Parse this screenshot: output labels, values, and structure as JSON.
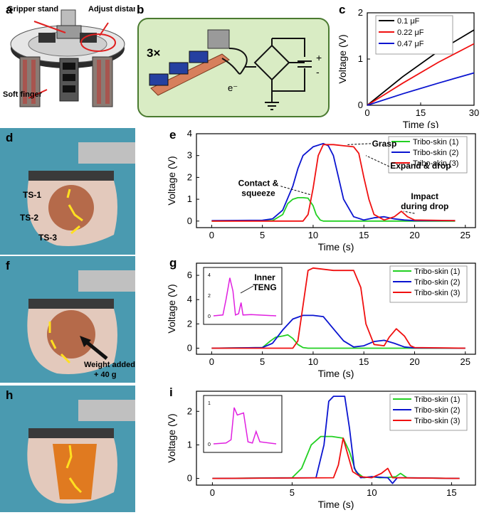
{
  "panel_labels": {
    "a": "a",
    "b": "b",
    "c": "c",
    "d": "d",
    "e": "e",
    "f": "f",
    "g": "g",
    "h": "h",
    "i": "i"
  },
  "panel_a": {
    "gripper_stand": "Gripper stand",
    "adjust_distance": "Adjust distance",
    "soft_finger": "Soft finger"
  },
  "panel_b": {
    "multiplier": "3×",
    "electron": "e⁻",
    "plus": "+",
    "minus": "-"
  },
  "panel_d": {
    "ts1": "TS-1",
    "ts2": "TS-2",
    "ts3": "TS-3"
  },
  "panel_f": {
    "weight": "Weight added",
    "weight2": "+ 40 g"
  },
  "colors": {
    "green": "#22d022",
    "blue": "#0a14d0",
    "red": "#f01010",
    "black": "#000000",
    "magenta": "#e020e0",
    "panel_b_bg": "#d9ecc4"
  },
  "chart_data": [
    {
      "id": "c",
      "type": "line",
      "xlabel": "Time (s)",
      "ylabel": "Voltage (V)",
      "xlim": [
        0,
        30
      ],
      "ylim": [
        0,
        2
      ],
      "xticks": [
        "0",
        "15",
        "30"
      ],
      "yticks": [
        "0",
        "1",
        "2"
      ],
      "series": [
        {
          "name": "0.1 μF",
          "color": "#000000",
          "x": [
            0,
            10,
            20,
            30
          ],
          "values": [
            0,
            0.62,
            1.17,
            1.63
          ]
        },
        {
          "name": "0.22 μF",
          "color": "#f01010",
          "x": [
            0,
            10,
            20,
            30
          ],
          "values": [
            0,
            0.48,
            0.93,
            1.33
          ]
        },
        {
          "name": "0.47 μF",
          "color": "#0a14d0",
          "x": [
            0,
            10,
            20,
            30
          ],
          "values": [
            0,
            0.25,
            0.48,
            0.7
          ]
        }
      ]
    },
    {
      "id": "e",
      "type": "line",
      "xlabel": "Time (s)",
      "ylabel": "Voltage (V)",
      "xlim": [
        -1.5,
        26
      ],
      "ylim": [
        -0.3,
        4
      ],
      "xticks": [
        "0",
        "5",
        "10",
        "15",
        "20",
        "25"
      ],
      "yticks": [
        "0",
        "1",
        "2",
        "3",
        "4"
      ],
      "annotations": [
        "Grasp",
        "Expand & drop",
        "Contact &",
        "squeeze",
        "Impact",
        "during drop"
      ],
      "series": [
        {
          "name": "Tribo-skin (1)",
          "color": "#22d022",
          "x": [
            0,
            6,
            7,
            7.5,
            8,
            8.5,
            9,
            9.5,
            10,
            10.3,
            10.7,
            11,
            12,
            24
          ],
          "values": [
            0,
            0.02,
            0.3,
            0.8,
            1.0,
            1.07,
            1.07,
            1.05,
            0.7,
            0.3,
            0.05,
            0,
            0,
            0
          ]
        },
        {
          "name": "Tribo-skin (2)",
          "color": "#0a14d0",
          "x": [
            0,
            5,
            6,
            7,
            8,
            8.5,
            9,
            10,
            11,
            11.5,
            12,
            12.5,
            13,
            14,
            15,
            16,
            17,
            18,
            19,
            20,
            24
          ],
          "values": [
            0.02,
            0.04,
            0.1,
            0.5,
            1.6,
            2.4,
            3.0,
            3.4,
            3.55,
            3.45,
            3.0,
            2.0,
            1.0,
            0.2,
            0.05,
            0.15,
            0.2,
            0.1,
            0.05,
            0.02,
            0.02
          ]
        },
        {
          "name": "Tribo-skin (3)",
          "color": "#f01010",
          "x": [
            0,
            9,
            9.5,
            10,
            10.5,
            11,
            12,
            13,
            14,
            14.5,
            15,
            15.5,
            16,
            17,
            18,
            18.7,
            19.3,
            20,
            24
          ],
          "values": [
            0,
            0,
            0.3,
            1.5,
            3.0,
            3.5,
            3.5,
            3.45,
            3.4,
            3.1,
            2.0,
            1.0,
            0.3,
            0.05,
            0.2,
            0.45,
            0.2,
            0.05,
            0.02
          ]
        }
      ]
    },
    {
      "id": "g",
      "type": "line",
      "xlabel": "Time (s)",
      "ylabel": "Voltage (V)",
      "xlim": [
        -1.5,
        26
      ],
      "ylim": [
        -0.5,
        7
      ],
      "xticks": [
        "0",
        "5",
        "10",
        "15",
        "20",
        "25"
      ],
      "yticks": [
        "0",
        "2",
        "4",
        "6"
      ],
      "series": [
        {
          "name": "Tribo-skin (1)",
          "color": "#22d022",
          "x": [
            0,
            5,
            5.8,
            6.3,
            7,
            7.5,
            8,
            8.5,
            9,
            9.5,
            25
          ],
          "values": [
            0,
            0.05,
            0.6,
            0.9,
            1.0,
            1.1,
            0.8,
            0.3,
            0.05,
            0,
            0
          ]
        },
        {
          "name": "Tribo-skin (2)",
          "color": "#0a14d0",
          "x": [
            0,
            5,
            6,
            7,
            8,
            9,
            10,
            11,
            12,
            13,
            14,
            15,
            16,
            17,
            18,
            19,
            20,
            25
          ],
          "values": [
            0,
            0.05,
            0.4,
            1.5,
            2.4,
            2.7,
            2.7,
            2.6,
            1.6,
            0.6,
            0.1,
            0.2,
            0.55,
            0.65,
            0.4,
            0.1,
            0.02,
            0
          ]
        },
        {
          "name": "Tribo-skin (3)",
          "color": "#f01010",
          "x": [
            0,
            8,
            8.5,
            9,
            9.5,
            10,
            12,
            14,
            14.7,
            15.2,
            16,
            17,
            17.5,
            18.2,
            19,
            19.6,
            20,
            25
          ],
          "values": [
            0,
            0,
            0.6,
            3.5,
            6.4,
            6.6,
            6.4,
            6.4,
            5.0,
            2.0,
            0.3,
            0.2,
            0.9,
            1.6,
            1.0,
            0.2,
            0.05,
            0
          ]
        }
      ],
      "inset": {
        "label": "Inner TENG",
        "label1": "Inner",
        "label2": "TENG",
        "color": "#e020e0",
        "yticks": [
          "0",
          "2",
          "4"
        ]
      }
    },
    {
      "id": "i",
      "type": "line",
      "xlabel": "Time (s)",
      "ylabel": "Voltage (V)",
      "xlim": [
        -1,
        16.5
      ],
      "ylim": [
        -0.2,
        2.6
      ],
      "xticks": [
        "0",
        "5",
        "10",
        "15"
      ],
      "yticks": [
        "0",
        "1",
        "2"
      ],
      "series": [
        {
          "name": "Tribo-skin (1)",
          "color": "#22d022",
          "x": [
            0,
            5,
            5.6,
            6.2,
            6.8,
            7.5,
            8.2,
            8.6,
            9,
            9.5,
            10,
            10.5,
            11,
            11.5,
            11.8,
            12.2,
            15.5
          ],
          "values": [
            0,
            0.02,
            0.3,
            1.0,
            1.25,
            1.25,
            1.2,
            0.8,
            0.2,
            0.02,
            0.05,
            0.02,
            0.03,
            0.05,
            0.15,
            0.02,
            0
          ]
        },
        {
          "name": "Tribo-skin (2)",
          "color": "#0a14d0",
          "x": [
            0,
            6.5,
            7,
            7.3,
            7.6,
            8.3,
            8.6,
            8.9,
            9.3,
            10,
            11,
            11.3,
            11.6,
            12,
            15.5
          ],
          "values": [
            0,
            0.02,
            1.0,
            2.3,
            2.45,
            2.45,
            1.5,
            0.3,
            0.02,
            0.05,
            0.02,
            -0.15,
            0.02,
            0.02,
            0
          ]
        },
        {
          "name": "Tribo-skin (3)",
          "color": "#f01010",
          "x": [
            0,
            7.6,
            7.9,
            8.2,
            8.5,
            8.8,
            9.3,
            10,
            10.6,
            11,
            11.3,
            15.5
          ],
          "values": [
            0,
            0.02,
            0.4,
            1.2,
            0.7,
            0.2,
            0.05,
            0.02,
            0.15,
            0.3,
            0.02,
            0
          ]
        }
      ],
      "inset": {
        "color": "#e020e0",
        "yticks": [
          "0",
          "1"
        ]
      }
    }
  ]
}
